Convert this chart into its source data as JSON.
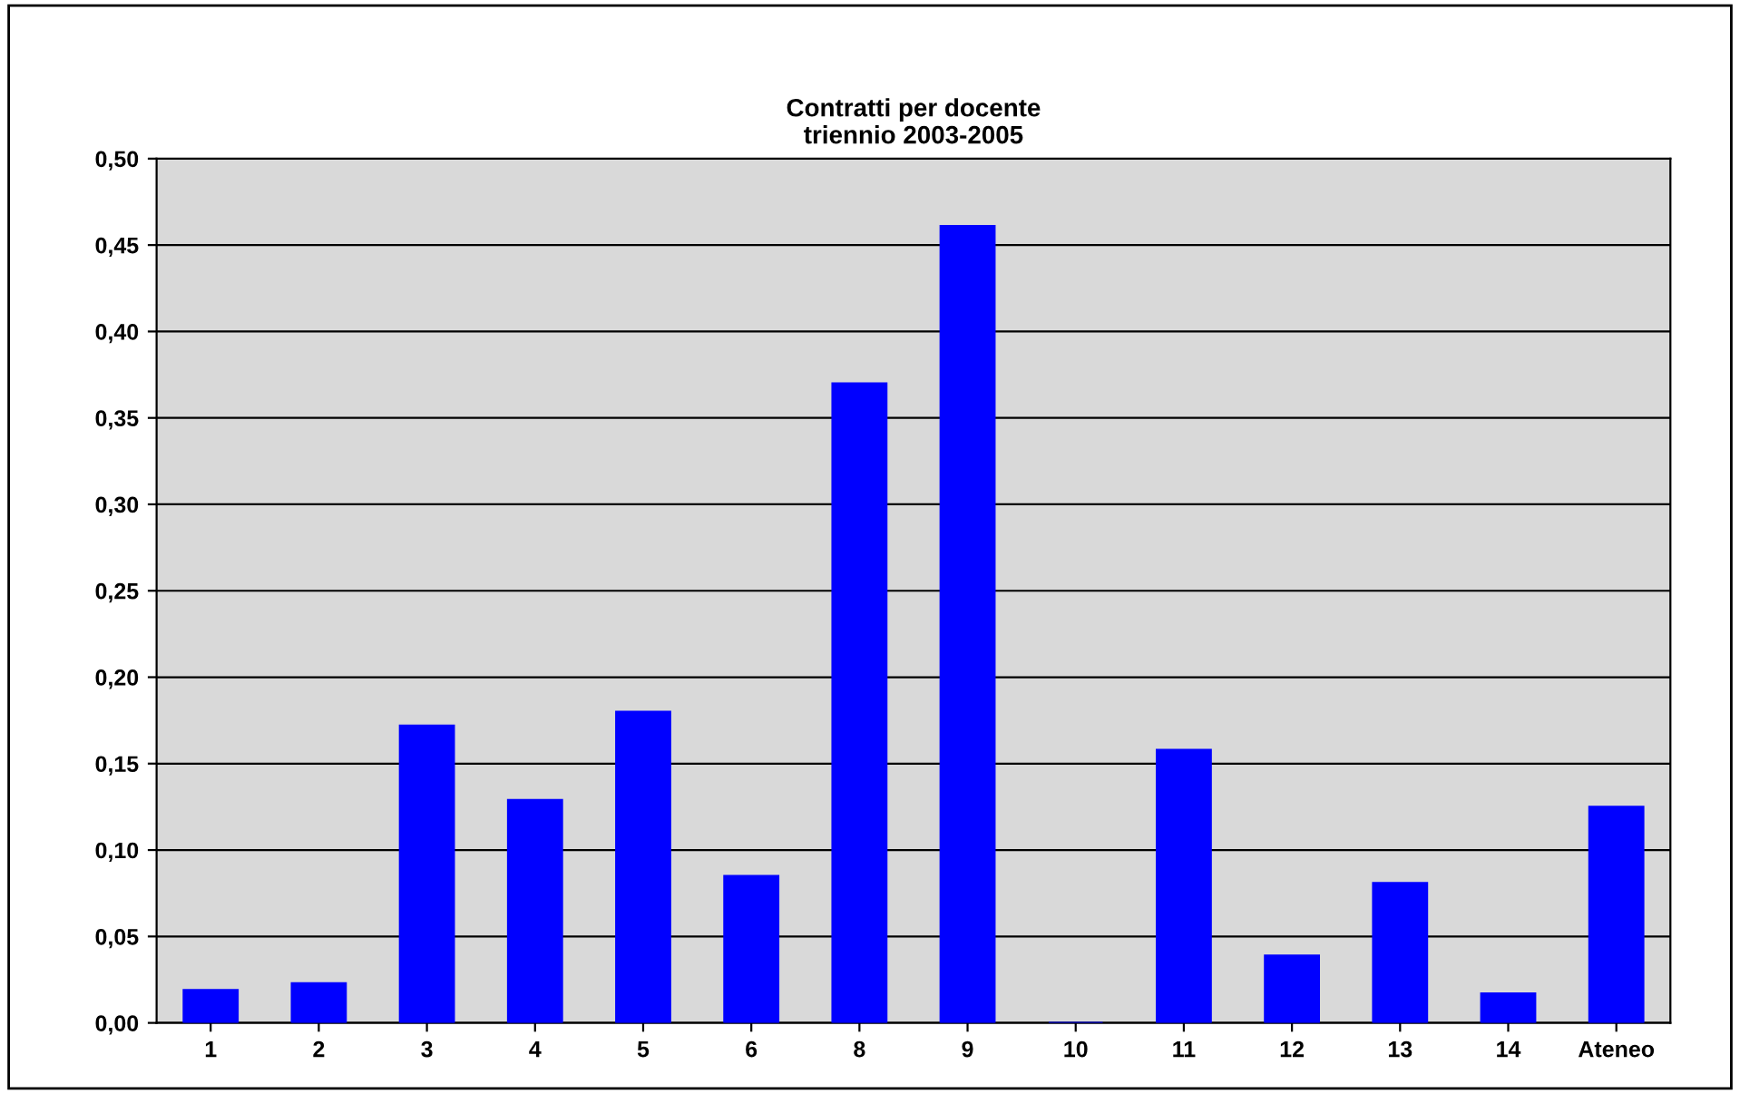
{
  "chart_data": {
    "type": "bar",
    "title": "Contratti per docente\ntriennio 2003-2005",
    "categories": [
      "1",
      "2",
      "3",
      "4",
      "5",
      "6",
      "8",
      "9",
      "10",
      "11",
      "12",
      "13",
      "14",
      "Ateneo"
    ],
    "values": [
      0.019,
      0.023,
      0.172,
      0.129,
      0.18,
      0.085,
      0.37,
      0.461,
      0,
      0.158,
      0.039,
      0.081,
      0.017,
      0.125
    ],
    "color": "#0000ff",
    "ylim": [
      0,
      0.5
    ],
    "yticks": [
      {
        "value": 0,
        "label": "0,00"
      },
      {
        "value": 0.05,
        "label": "0,05"
      },
      {
        "value": 0.1,
        "label": "0,10"
      },
      {
        "value": 0.15,
        "label": "0,15"
      },
      {
        "value": 0.2,
        "label": "0,20"
      },
      {
        "value": 0.25,
        "label": "0,25"
      },
      {
        "value": 0.3,
        "label": "0,30"
      },
      {
        "value": 0.35,
        "label": "0,35"
      },
      {
        "value": 0.4,
        "label": "0,40"
      },
      {
        "value": 0.45,
        "label": "0,45"
      },
      {
        "value": 0.5,
        "label": "0,50"
      }
    ],
    "grid": "y"
  }
}
